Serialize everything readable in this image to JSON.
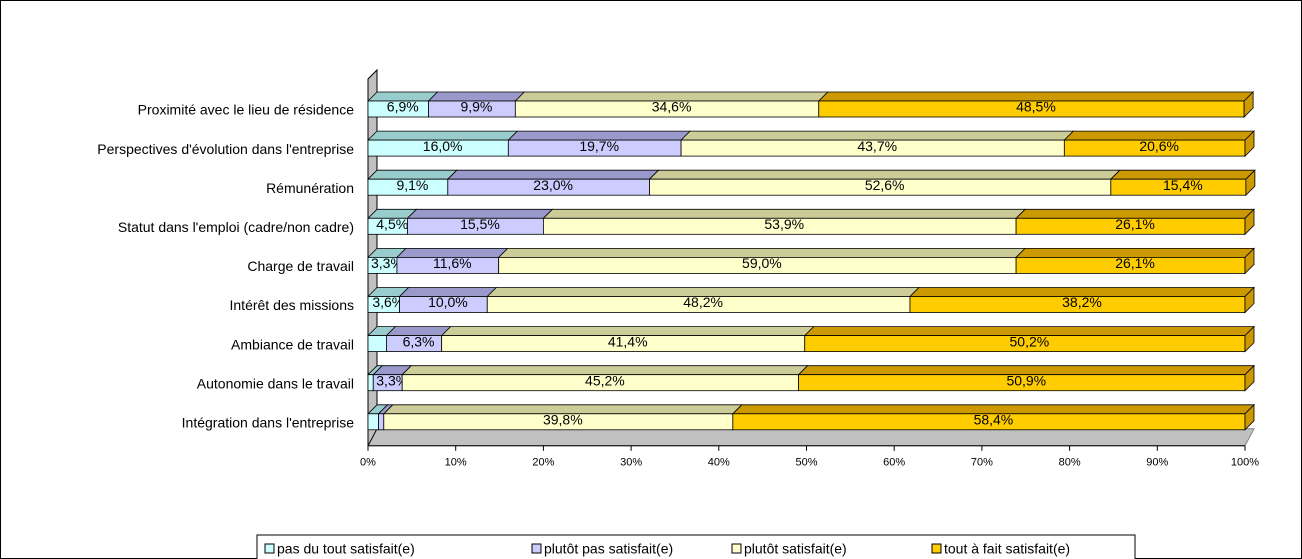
{
  "chart_data": {
    "type": "stacked-bar-3d-horizontal",
    "categories": [
      "Proximité avec le lieu de résidence",
      "Perspectives d'évolution dans l'entreprise",
      "Rémunération",
      "Statut dans l'emploi (cadre/non cadre)",
      "Charge de travail",
      "Intérêt des missions",
      "Ambiance de travail",
      "Autonomie dans le travail",
      "Intégration dans l'entreprise"
    ],
    "series": [
      {
        "name": "pas du tout satisfait(e)",
        "color": "#ccffff",
        "top_color": "#99cccc",
        "values": [
          6.9,
          16.0,
          9.1,
          4.5,
          3.3,
          3.6,
          2.1,
          0.6,
          1.2
        ],
        "value_labels": [
          "6,9%",
          "16,0%",
          "9,1%",
          "4,5%",
          "3,3%",
          "3,6%",
          null,
          null,
          null
        ]
      },
      {
        "name": "plutôt pas satisfait(e)",
        "color": "#ccccff",
        "top_color": "#9999cc",
        "values": [
          9.9,
          19.7,
          23.0,
          15.5,
          11.6,
          10.0,
          6.3,
          3.3,
          0.6
        ],
        "value_labels": [
          "9,9%",
          "19,7%",
          "23,0%",
          "15,5%",
          "11,6%",
          "10,0%",
          "6,3%",
          "3,3%",
          null
        ]
      },
      {
        "name": "plutôt satisfait(e)",
        "color": "#ffffcc",
        "top_color": "#cccc99",
        "values": [
          34.6,
          43.7,
          52.6,
          53.9,
          59.0,
          48.2,
          41.4,
          45.2,
          39.8
        ],
        "value_labels": [
          "34,6%",
          "43,7%",
          "52,6%",
          "53,9%",
          "59,0%",
          "48,2%",
          "41,4%",
          "45,2%",
          "39,8%"
        ]
      },
      {
        "name": "tout à fait satisfait(e)",
        "color": "#ffcc00",
        "top_color": "#cc9900",
        "values": [
          48.5,
          20.6,
          15.4,
          26.1,
          26.1,
          38.2,
          50.2,
          50.9,
          58.4
        ],
        "value_labels": [
          "48,5%",
          "20,6%",
          "15,4%",
          "26,1%",
          "26,1%",
          "38,2%",
          "50,2%",
          "50,9%",
          "58,4%"
        ]
      }
    ],
    "xlim": [
      0,
      100
    ],
    "xticks": [
      {
        "value": 0,
        "label": "0%"
      },
      {
        "value": 10,
        "label": "10%"
      },
      {
        "value": 20,
        "label": "20%"
      },
      {
        "value": 30,
        "label": "30%"
      },
      {
        "value": 40,
        "label": "40%"
      },
      {
        "value": 50,
        "label": "50%"
      },
      {
        "value": 60,
        "label": "60%"
      },
      {
        "value": 70,
        "label": "70%"
      },
      {
        "value": 80,
        "label": "80%"
      },
      {
        "value": 90,
        "label": "90%"
      },
      {
        "value": 100,
        "label": "100%"
      }
    ],
    "legend": "bottom"
  }
}
